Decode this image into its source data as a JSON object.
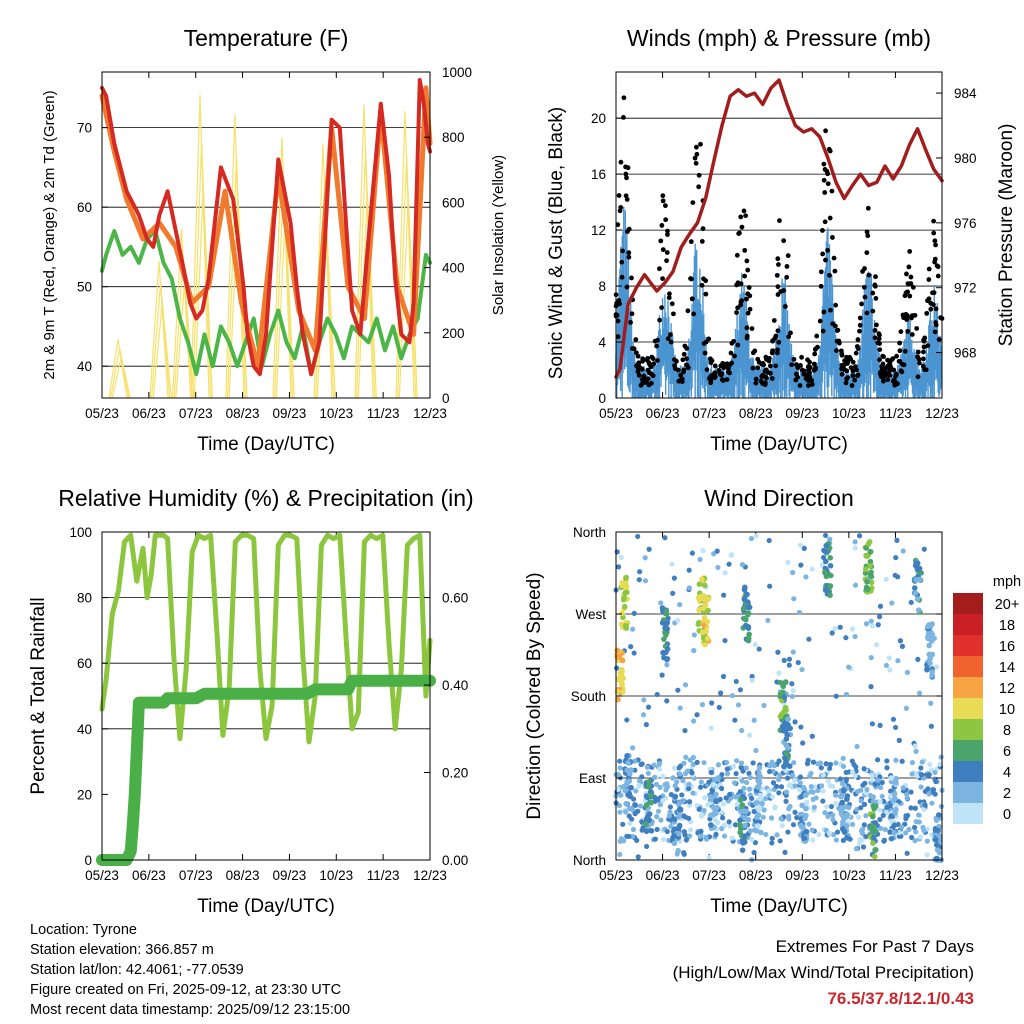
{
  "chart_data": [
    {
      "id": "temperature",
      "type": "line",
      "title": "Temperature (F)",
      "xlabel": "Time (Day/UTC)",
      "ylabel": "2m & 9m T (Red, Orange) & 2m Td (Green)",
      "y2label": "Solar Insolation (Yellow)",
      "x_ticks": [
        "05/23",
        "06/23",
        "07/23",
        "08/23",
        "09/23",
        "10/23",
        "11/23",
        "12/23"
      ],
      "y_ticks": [
        "40",
        "50",
        "60",
        "70"
      ],
      "y2_ticks": [
        "0",
        "200",
        "400",
        "600",
        "800",
        "1000"
      ],
      "ylim": [
        36,
        77
      ],
      "y2lim": [
        0,
        1000
      ],
      "series": [
        {
          "name": "2m T",
          "color": "#d42a22",
          "x": [
            0,
            0.1,
            0.3,
            0.6,
            0.9,
            1.1,
            1.25,
            1.4,
            1.6,
            1.8,
            2.0,
            2.15,
            2.3,
            2.45,
            2.6,
            2.9,
            3.2,
            3.45,
            3.55,
            3.7,
            3.85,
            4.0,
            4.3,
            4.6,
            4.75,
            4.9,
            5.1,
            5.3,
            5.6,
            5.8,
            5.95,
            6.1,
            6.3,
            6.5,
            6.8,
            7.0,
            7.15,
            7.3,
            7.5,
            7.6,
            7.75,
            7.85,
            7.95,
            8.0
          ],
          "values": [
            75,
            74,
            68,
            62,
            59,
            56,
            55,
            59,
            62,
            57,
            52,
            48,
            46,
            47,
            51,
            65,
            61,
            50,
            44,
            40,
            39,
            44,
            66,
            58,
            50,
            44,
            39,
            43,
            71,
            70,
            58,
            47,
            44,
            56,
            73,
            64,
            51,
            44,
            43,
            48,
            76,
            73,
            68,
            67
          ]
        },
        {
          "name": "9m T",
          "color": "#f07a2d",
          "x": [
            0,
            0.3,
            0.6,
            1.0,
            1.4,
            1.8,
            2.2,
            2.6,
            3.0,
            3.4,
            3.8,
            4.3,
            4.8,
            5.2,
            5.6,
            6.0,
            6.4,
            6.8,
            7.2,
            7.6,
            7.9,
            8.0
          ],
          "values": [
            74,
            67,
            61,
            56,
            58,
            55,
            48,
            50,
            62,
            48,
            40,
            64,
            47,
            42,
            70,
            50,
            46,
            72,
            50,
            44,
            75,
            68
          ]
        },
        {
          "name": "2m Td",
          "color": "#4cb547",
          "x": [
            0,
            0.1,
            0.3,
            0.5,
            0.7,
            0.9,
            1.1,
            1.3,
            1.5,
            1.7,
            1.9,
            2.1,
            2.3,
            2.5,
            2.7,
            2.9,
            3.1,
            3.3,
            3.5,
            3.7,
            3.9,
            4.1,
            4.3,
            4.5,
            4.7,
            4.9,
            5.1,
            5.3,
            5.5,
            5.7,
            5.9,
            6.1,
            6.3,
            6.5,
            6.7,
            6.9,
            7.1,
            7.3,
            7.5,
            7.7,
            7.9,
            8.0
          ],
          "values": [
            52,
            54,
            57,
            54,
            55,
            53,
            56,
            57,
            53,
            51,
            46,
            43,
            39,
            44,
            40,
            45,
            43,
            40,
            43,
            46,
            40,
            44,
            47,
            43,
            41,
            45,
            39,
            43,
            46,
            44,
            41,
            45,
            44,
            43,
            46,
            42,
            45,
            41,
            44,
            46,
            54,
            53
          ]
        },
        {
          "name": "Solar Insolation",
          "color": "#f5e16b",
          "axis": "y2",
          "peaks_x": [
            0.45,
            1.45,
            2.0,
            2.45,
            3.3,
            4.45,
            5.45,
            6.45,
            7.45
          ],
          "peak_values": [
            180,
            420,
            520,
            930,
            870,
            800,
            780,
            900,
            880
          ]
        }
      ]
    },
    {
      "id": "winds",
      "type": "scatter",
      "title": "Winds (mph) & Pressure (mb)",
      "xlabel": "Time (Day/UTC)",
      "ylabel": "Sonic Wind & Gust (Blue, Black)",
      "y2label": "Station Pressure (Maroon)",
      "x_ticks": [
        "05/23",
        "06/23",
        "07/23",
        "08/23",
        "09/23",
        "10/23",
        "11/23",
        "12/23"
      ],
      "y_ticks": [
        "0",
        "4",
        "8",
        "12",
        "16",
        "20"
      ],
      "y2_ticks": [
        "968",
        "972",
        "976",
        "980",
        "984"
      ],
      "ylim": [
        0,
        23.3
      ],
      "y2lim": [
        965.2,
        985.3
      ],
      "wind_peaks": {
        "x": [
          0.2,
          1.2,
          2.0,
          3.1,
          4.1,
          5.2,
          6.2,
          7.2,
          7.8
        ],
        "gust": [
          21,
          13,
          20,
          13,
          13,
          19,
          15,
          8,
          10
        ],
        "wind": [
          12,
          7,
          10,
          7,
          7,
          10,
          8,
          4,
          6
        ]
      },
      "series": [
        {
          "name": "Station Pressure",
          "color": "#a01e1e",
          "x": [
            0,
            0.1,
            0.2,
            0.3,
            0.5,
            0.7,
            1.0,
            1.2,
            1.4,
            1.6,
            1.8,
            2.0,
            2.2,
            2.4,
            2.6,
            2.8,
            3.0,
            3.2,
            3.4,
            3.6,
            3.8,
            4.0,
            4.2,
            4.4,
            4.6,
            4.8,
            5.0,
            5.2,
            5.4,
            5.6,
            5.8,
            6.0,
            6.2,
            6.4,
            6.6,
            6.8,
            7.0,
            7.2,
            7.4,
            7.6,
            7.8,
            8.0
          ],
          "values": [
            966.5,
            967,
            969,
            971,
            972,
            972.8,
            971.8,
            972.3,
            973,
            974.5,
            975.3,
            976,
            977.5,
            979.8,
            982,
            983.8,
            984.2,
            983.8,
            984,
            983.3,
            984.3,
            984.8,
            983.3,
            982,
            981.6,
            981.8,
            981.3,
            980,
            978.5,
            977.5,
            978.3,
            979,
            978.3,
            978.5,
            979.5,
            978.7,
            979.5,
            980.8,
            981.8,
            980.5,
            979.3,
            978.6
          ]
        }
      ]
    },
    {
      "id": "humidity",
      "type": "line",
      "title": "Relative Humidity (%) & Precipitation (in)",
      "xlabel": "Time (Day/UTC)",
      "ylabel": "Percent & Total Rainfall",
      "x_ticks": [
        "05/23",
        "06/23",
        "07/23",
        "08/23",
        "09/23",
        "10/23",
        "11/23",
        "12/23"
      ],
      "y_ticks": [
        "0",
        "20",
        "40",
        "60",
        "80",
        "100"
      ],
      "y2_ticks": [
        "0.00",
        "0.20",
        "0.40",
        "0.60"
      ],
      "ylim": [
        0,
        100
      ],
      "y2lim": [
        0,
        0.75
      ],
      "series": [
        {
          "name": "Relative Humidity",
          "color": "#8cc63f",
          "x": [
            0,
            0.1,
            0.25,
            0.4,
            0.55,
            0.7,
            0.85,
            1.0,
            1.1,
            1.2,
            1.3,
            1.4,
            1.5,
            1.6,
            1.75,
            1.9,
            2.05,
            2.2,
            2.35,
            2.5,
            2.65,
            2.8,
            2.95,
            3.1,
            3.25,
            3.4,
            3.55,
            3.7,
            3.85,
            4.0,
            4.15,
            4.3,
            4.45,
            4.6,
            4.75,
            4.9,
            5.05,
            5.2,
            5.35,
            5.5,
            5.65,
            5.8,
            5.95,
            6.1,
            6.25,
            6.4,
            6.55,
            6.7,
            6.85,
            7.0,
            7.15,
            7.3,
            7.45,
            7.6,
            7.75,
            7.9,
            8.0
          ],
          "values": [
            46,
            55,
            75,
            82,
            97,
            99,
            85,
            95,
            80,
            87,
            99,
            99,
            99,
            98,
            62,
            37,
            58,
            94,
            99,
            98,
            99,
            70,
            38,
            52,
            97,
            99,
            99,
            98,
            58,
            37,
            47,
            96,
            99,
            99,
            98,
            62,
            36,
            50,
            96,
            99,
            98,
            99,
            68,
            40,
            45,
            97,
            99,
            98,
            99,
            66,
            40,
            58,
            96,
            98,
            99,
            50,
            67
          ]
        },
        {
          "name": "Total Precipitation",
          "color": "#4aaf47",
          "axis": "y2",
          "x": [
            0,
            0.6,
            0.7,
            0.75,
            0.8,
            0.85,
            0.9,
            1.0,
            1.5,
            1.6,
            2.3,
            2.5,
            3.9,
            4.0,
            5.0,
            5.2,
            6.0,
            6.1,
            7.5,
            8.0
          ],
          "values": [
            0,
            0,
            0.02,
            0.08,
            0.15,
            0.25,
            0.36,
            0.36,
            0.36,
            0.37,
            0.37,
            0.38,
            0.38,
            0.38,
            0.38,
            0.39,
            0.39,
            0.41,
            0.41,
            0.41
          ]
        }
      ]
    },
    {
      "id": "wind_direction",
      "type": "scatter",
      "title": "Wind Direction",
      "xlabel": "Time (Day/UTC)",
      "ylabel": "Direction (Colored By Speed)",
      "x_ticks": [
        "05/23",
        "06/23",
        "07/23",
        "08/23",
        "09/23",
        "10/23",
        "11/23",
        "12/23"
      ],
      "y_ticks": [
        "North",
        "East",
        "South",
        "West",
        "North"
      ],
      "ylim": [
        0,
        360
      ],
      "colorbar": {
        "unit": "mph",
        "labels": [
          "20+",
          "18",
          "16",
          "14",
          "12",
          "10",
          "8",
          "6",
          "4",
          "2",
          "0"
        ],
        "colors": [
          "#a31d1d",
          "#c91f25",
          "#e2302c",
          "#f0622e",
          "#f7a445",
          "#e8dc57",
          "#8dc640",
          "#4aa46b",
          "#3f7fbf",
          "#7cb4e2",
          "#bfe3f7"
        ]
      },
      "clusters": [
        {
          "x": 0.1,
          "dir": 200,
          "speed": 11
        },
        {
          "x": 0.2,
          "dir": 280,
          "speed": 9
        },
        {
          "x": 0.3,
          "dir": 90,
          "speed": 3
        },
        {
          "x": 0.8,
          "dir": 60,
          "speed": 4
        },
        {
          "x": 1.2,
          "dir": 250,
          "speed": 5
        },
        {
          "x": 1.5,
          "dir": 40,
          "speed": 3
        },
        {
          "x": 2.1,
          "dir": 280,
          "speed": 9
        },
        {
          "x": 2.2,
          "dir": 260,
          "speed": 10
        },
        {
          "x": 2.4,
          "dir": 60,
          "speed": 2
        },
        {
          "x": 3.1,
          "dir": 40,
          "speed": 4
        },
        {
          "x": 3.2,
          "dir": 270,
          "speed": 5
        },
        {
          "x": 3.5,
          "dir": 60,
          "speed": 2
        },
        {
          "x": 4.1,
          "dir": 170,
          "speed": 6
        },
        {
          "x": 4.2,
          "dir": 130,
          "speed": 4
        },
        {
          "x": 4.6,
          "dir": 50,
          "speed": 3
        },
        {
          "x": 5.2,
          "dir": 320,
          "speed": 5
        },
        {
          "x": 5.6,
          "dir": 60,
          "speed": 3
        },
        {
          "x": 6.2,
          "dir": 320,
          "speed": 7
        },
        {
          "x": 6.3,
          "dir": 30,
          "speed": 6
        },
        {
          "x": 6.8,
          "dir": 60,
          "speed": 2
        },
        {
          "x": 7.4,
          "dir": 300,
          "speed": 4
        },
        {
          "x": 7.7,
          "dir": 230,
          "speed": 3
        },
        {
          "x": 7.9,
          "dir": 20,
          "speed": 3
        }
      ]
    }
  ],
  "footer": {
    "location": "Location: Tyrone",
    "elevation": "Station elevation: 366.857 m",
    "latlon": "Station lat/lon: 42.4061; -77.0539",
    "created": "Figure created on Fri, 2025-09-12, at 23:30 UTC",
    "recent": "Most recent data timestamp: 2025/09/12 23:15:00"
  },
  "extremes": {
    "title": "Extremes For Past 7 Days",
    "subtitle": "(High/Low/Max Wind/Total Precipitation)",
    "values": "76.5/37.8/12.1/0.43"
  }
}
